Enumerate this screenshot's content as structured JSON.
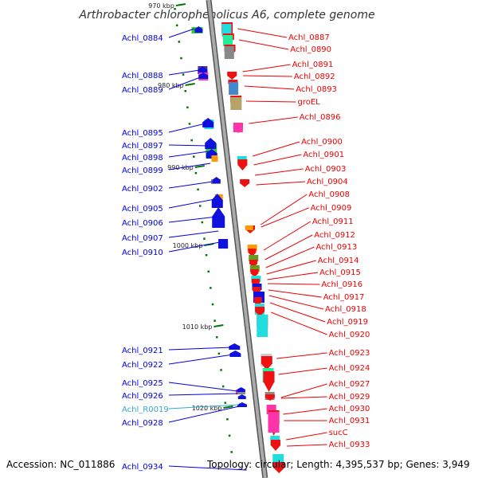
{
  "title": "Arthrobacter chlorophenolicus A6, complete genome",
  "footer": {
    "accession": "Accession: NC_011886",
    "info": "Topology: circular; Length: 4,395,537 bp; Genes: 3,949"
  },
  "colors": {
    "forward_strand": "#ee0000",
    "reverse_strand": "#0000dd",
    "rna_label": "#33aacc",
    "backbone": "#888888",
    "tick": "#007700"
  },
  "scale_labels": [
    "970 kbp",
    "980 kbp",
    "990 kbp",
    "1000 kbp",
    "1010 kbp",
    "1020 kbp"
  ],
  "left_labels": [
    "Achl_0884",
    "Achl_0888",
    "Achl_0889",
    "Achl_0895",
    "Achl_0897",
    "Achl_0898",
    "Achl_0899",
    "Achl_0902",
    "Achl_0905",
    "Achl_0906",
    "Achl_0907",
    "Achl_0910",
    "Achl_0921",
    "Achl_0922",
    "Achl_0925",
    "Achl_0926",
    "Achl_R0019",
    "Achl_0928",
    "Achl_0934"
  ],
  "right_labels": [
    "Achl_0887",
    "Achl_0890",
    "Achl_0891",
    "Achl_0892",
    "Achl_0893",
    "groEL",
    "Achl_0896",
    "Achl_0900",
    "Achl_0901",
    "Achl_0903",
    "Achl_0904",
    "Achl_0908",
    "Achl_0909",
    "Achl_0911",
    "Achl_0912",
    "Achl_0913",
    "Achl_0914",
    "Achl_0915",
    "Achl_0916",
    "Achl_0917",
    "Achl_0918",
    "Achl_0919",
    "Achl_0920",
    "Achl_0923",
    "Achl_0924",
    "Achl_0927",
    "Achl_0929",
    "Achl_0930",
    "Achl_0931",
    "sucC",
    "Achl_0933"
  ]
}
